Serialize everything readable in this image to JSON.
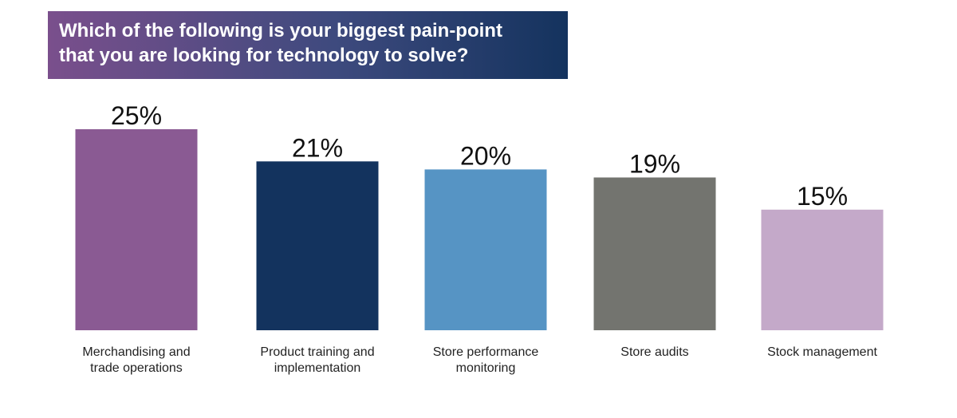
{
  "chart_data": {
    "type": "bar",
    "title_lines": [
      "Which of the following is your biggest pain-point",
      "that you are looking for technology to solve?"
    ],
    "categories": [
      [
        "Merchandising and",
        "trade operations"
      ],
      [
        "Product training and",
        "implementation"
      ],
      [
        "Store performance",
        "monitoring"
      ],
      [
        "Store audits"
      ],
      [
        "Stock management"
      ]
    ],
    "values": [
      25,
      21,
      20,
      19,
      15
    ],
    "value_labels": [
      "25%",
      "21%",
      "20%",
      "19%",
      "15%"
    ],
    "colors": [
      "#8a5a93",
      "#13335e",
      "#5694c4",
      "#73746f",
      "#c4a9c9"
    ],
    "ylim": [
      0,
      25
    ],
    "grid": false,
    "legend": "none"
  }
}
